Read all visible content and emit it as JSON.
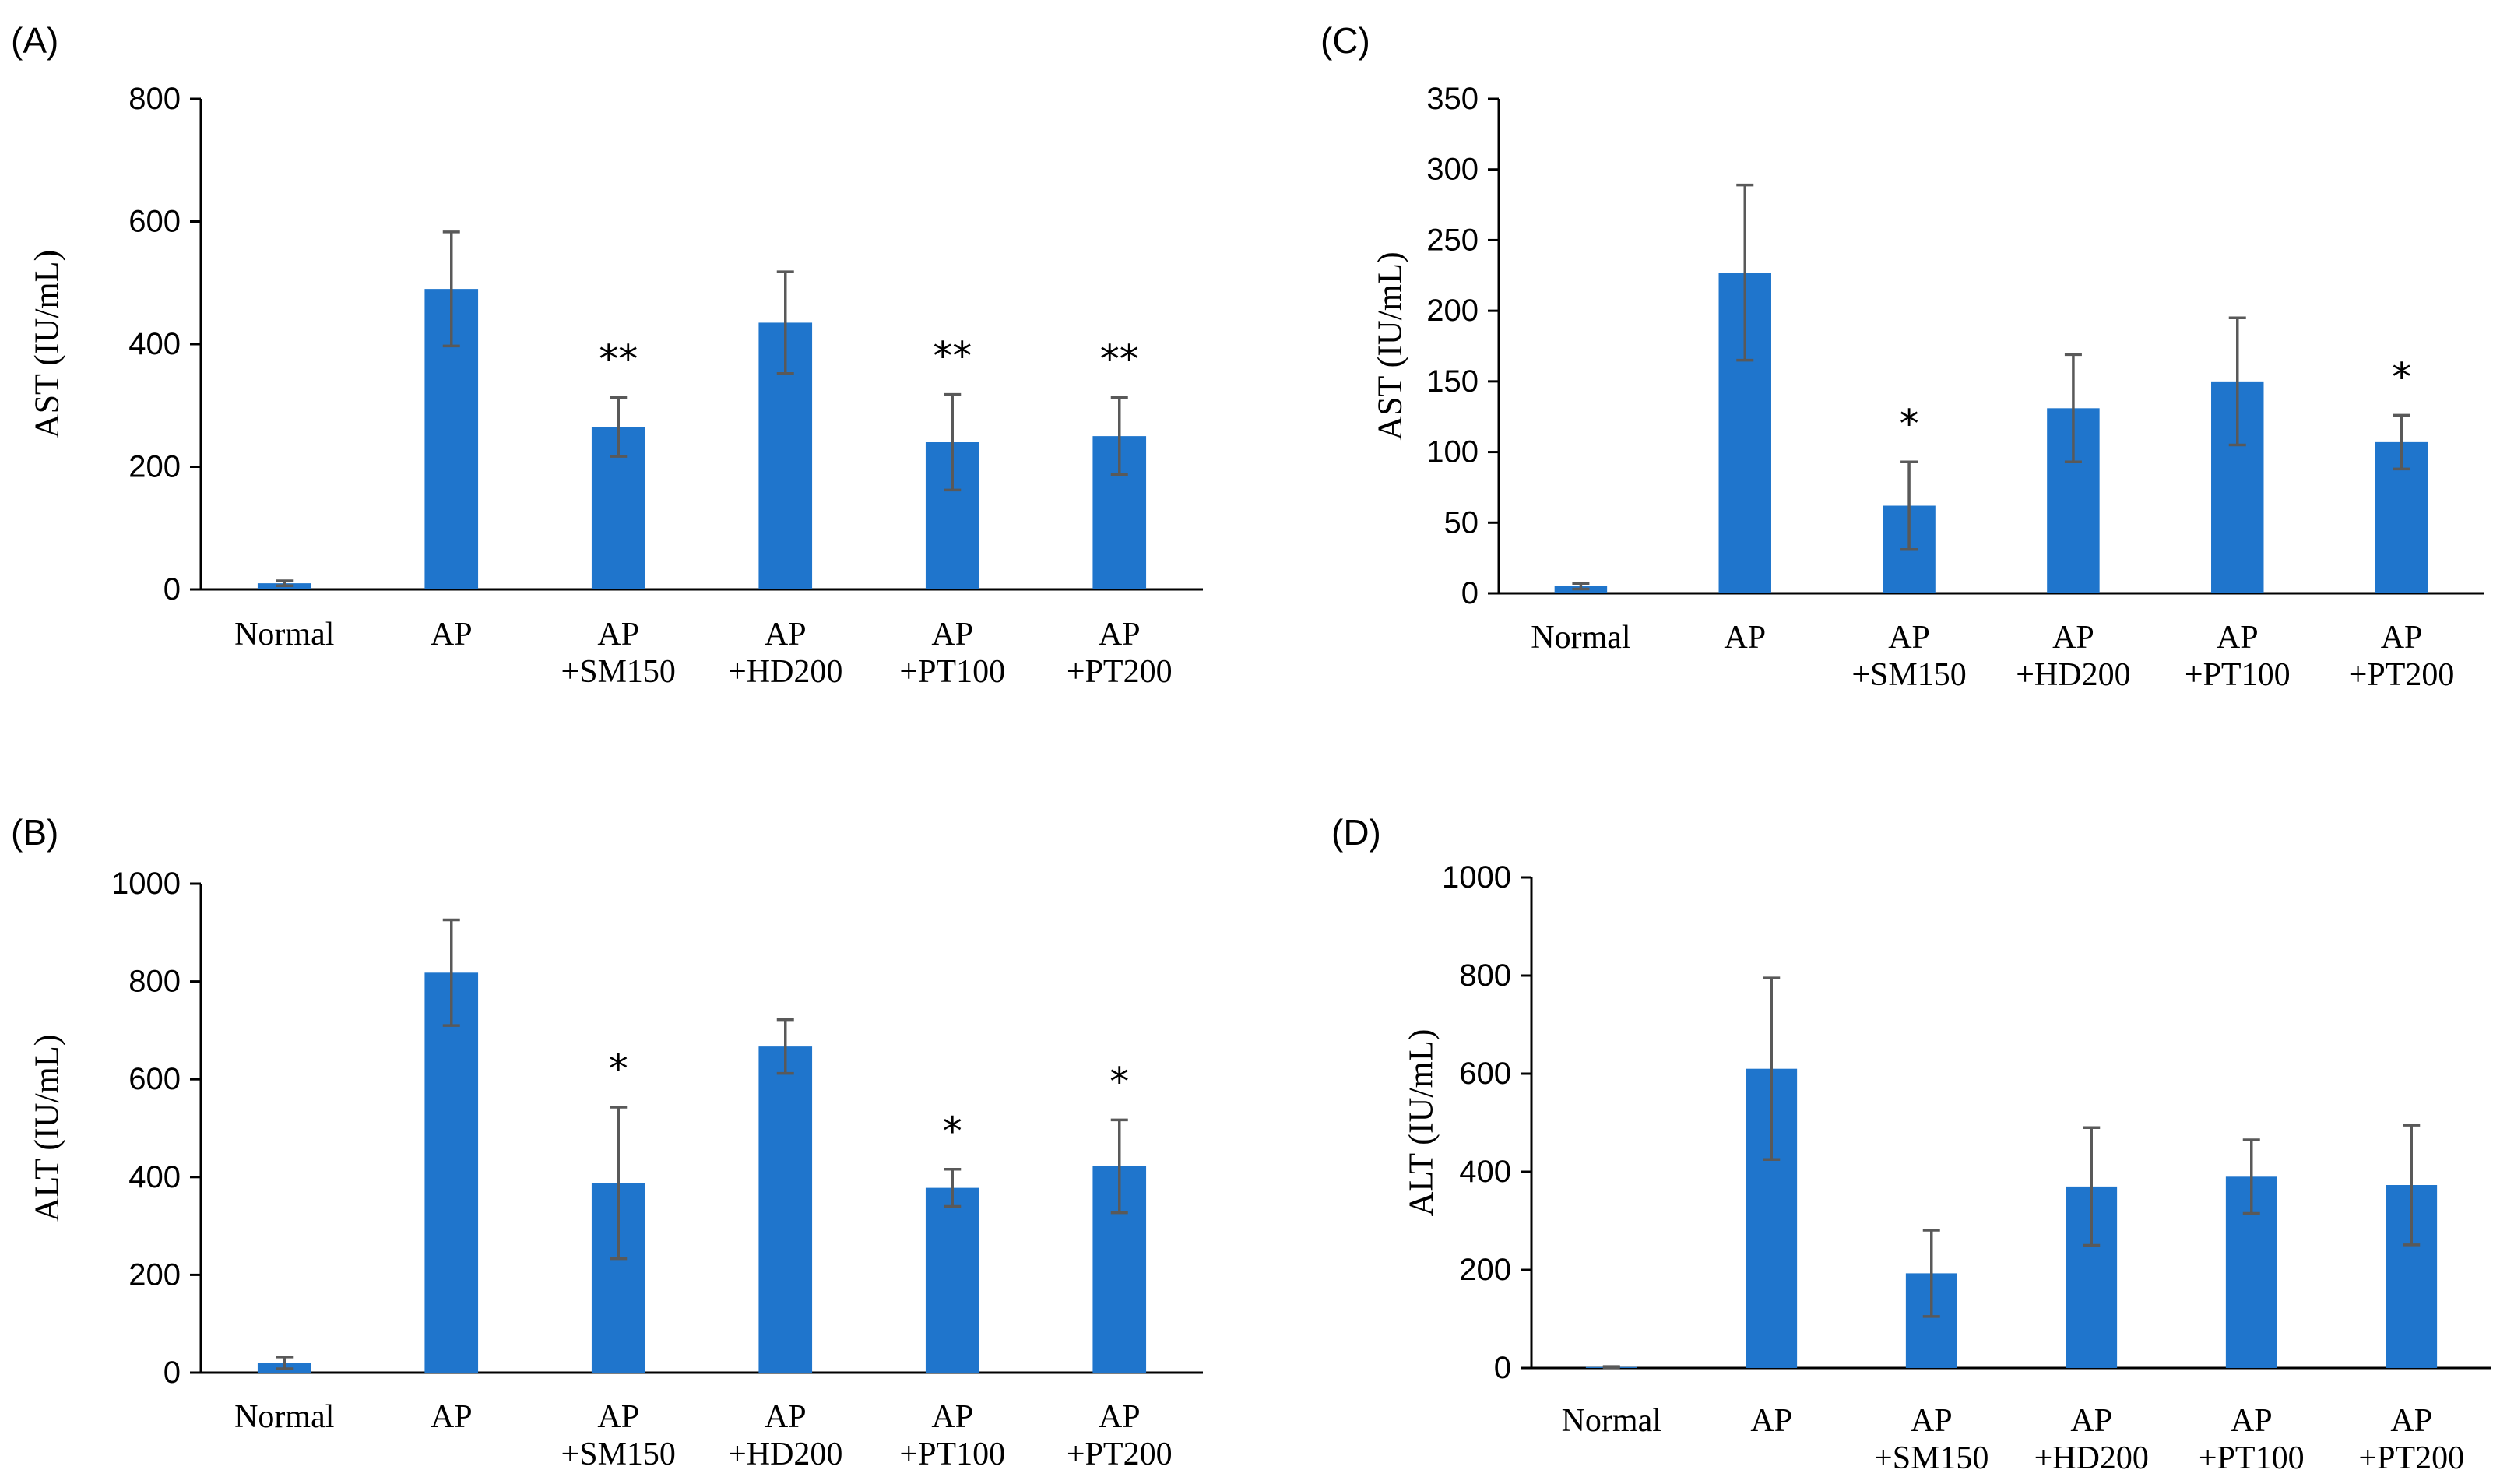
{
  "bar_color": "#1F75CC",
  "error_color": "#595959",
  "chart_data": [
    {
      "id": "A",
      "type": "bar",
      "panel_label": "(A)",
      "ylabel": "AST (IU/mL)",
      "ylim": [
        0,
        800
      ],
      "yticks": [
        "0",
        "200",
        "400",
        "600",
        "800"
      ],
      "categories": [
        [
          "Normal"
        ],
        [
          "AP"
        ],
        [
          "AP",
          "+SM150"
        ],
        [
          "AP",
          "+HD200"
        ],
        [
          "AP",
          "+PT100"
        ],
        [
          "AP",
          "+PT200"
        ]
      ],
      "values": [
        10,
        490,
        265,
        435,
        240,
        250
      ],
      "errors": [
        4,
        93,
        48,
        83,
        78,
        63
      ],
      "significance": [
        "",
        "",
        "**",
        "",
        "**",
        "**"
      ]
    },
    {
      "id": "B",
      "type": "bar",
      "panel_label": "(B)",
      "ylabel": "ALT (IU/mL)",
      "ylim": [
        0,
        1000
      ],
      "yticks": [
        "0",
        "200",
        "400",
        "600",
        "800",
        "1000"
      ],
      "categories": [
        [
          "Normal"
        ],
        [
          "AP"
        ],
        [
          "AP",
          "+SM150"
        ],
        [
          "AP",
          "+HD200"
        ],
        [
          "AP",
          "+PT100"
        ],
        [
          "AP",
          "+PT200"
        ]
      ],
      "values": [
        20,
        818,
        388,
        667,
        378,
        422
      ],
      "errors": [
        12,
        108,
        155,
        55,
        38,
        95
      ],
      "significance": [
        "",
        "",
        "*",
        "",
        "*",
        "*"
      ]
    },
    {
      "id": "C",
      "type": "bar",
      "panel_label": "(C)",
      "ylabel": "AST (IU/mL)",
      "ylim": [
        0,
        350
      ],
      "yticks": [
        "0",
        "50",
        "100",
        "150",
        "200",
        "250",
        "300",
        "350"
      ],
      "categories": [
        [
          "Normal"
        ],
        [
          "AP"
        ],
        [
          "AP",
          "+SM150"
        ],
        [
          "AP",
          "+HD200"
        ],
        [
          "AP",
          "+PT100"
        ],
        [
          "AP",
          "+PT200"
        ]
      ],
      "values": [
        5,
        227,
        62,
        131,
        150,
        107
      ],
      "errors": [
        2,
        62,
        31,
        38,
        45,
        19
      ],
      "significance": [
        "",
        "",
        "*",
        "",
        "",
        "*"
      ]
    },
    {
      "id": "D",
      "type": "bar",
      "panel_label": "(D)",
      "ylabel": "ALT (IU/mL)",
      "ylim": [
        0,
        1000
      ],
      "yticks": [
        "0",
        "200",
        "400",
        "600",
        "800",
        "1000"
      ],
      "categories": [
        [
          "Normal"
        ],
        [
          "AP"
        ],
        [
          "AP",
          "+SM150"
        ],
        [
          "AP",
          "+HD200"
        ],
        [
          "AP",
          "+PT100"
        ],
        [
          "AP",
          "+PT200"
        ]
      ],
      "values": [
        2,
        610,
        193,
        370,
        390,
        373
      ],
      "errors": [
        1,
        185,
        88,
        120,
        75,
        122
      ],
      "significance": [
        "",
        "",
        "",
        "",
        "",
        ""
      ]
    }
  ]
}
